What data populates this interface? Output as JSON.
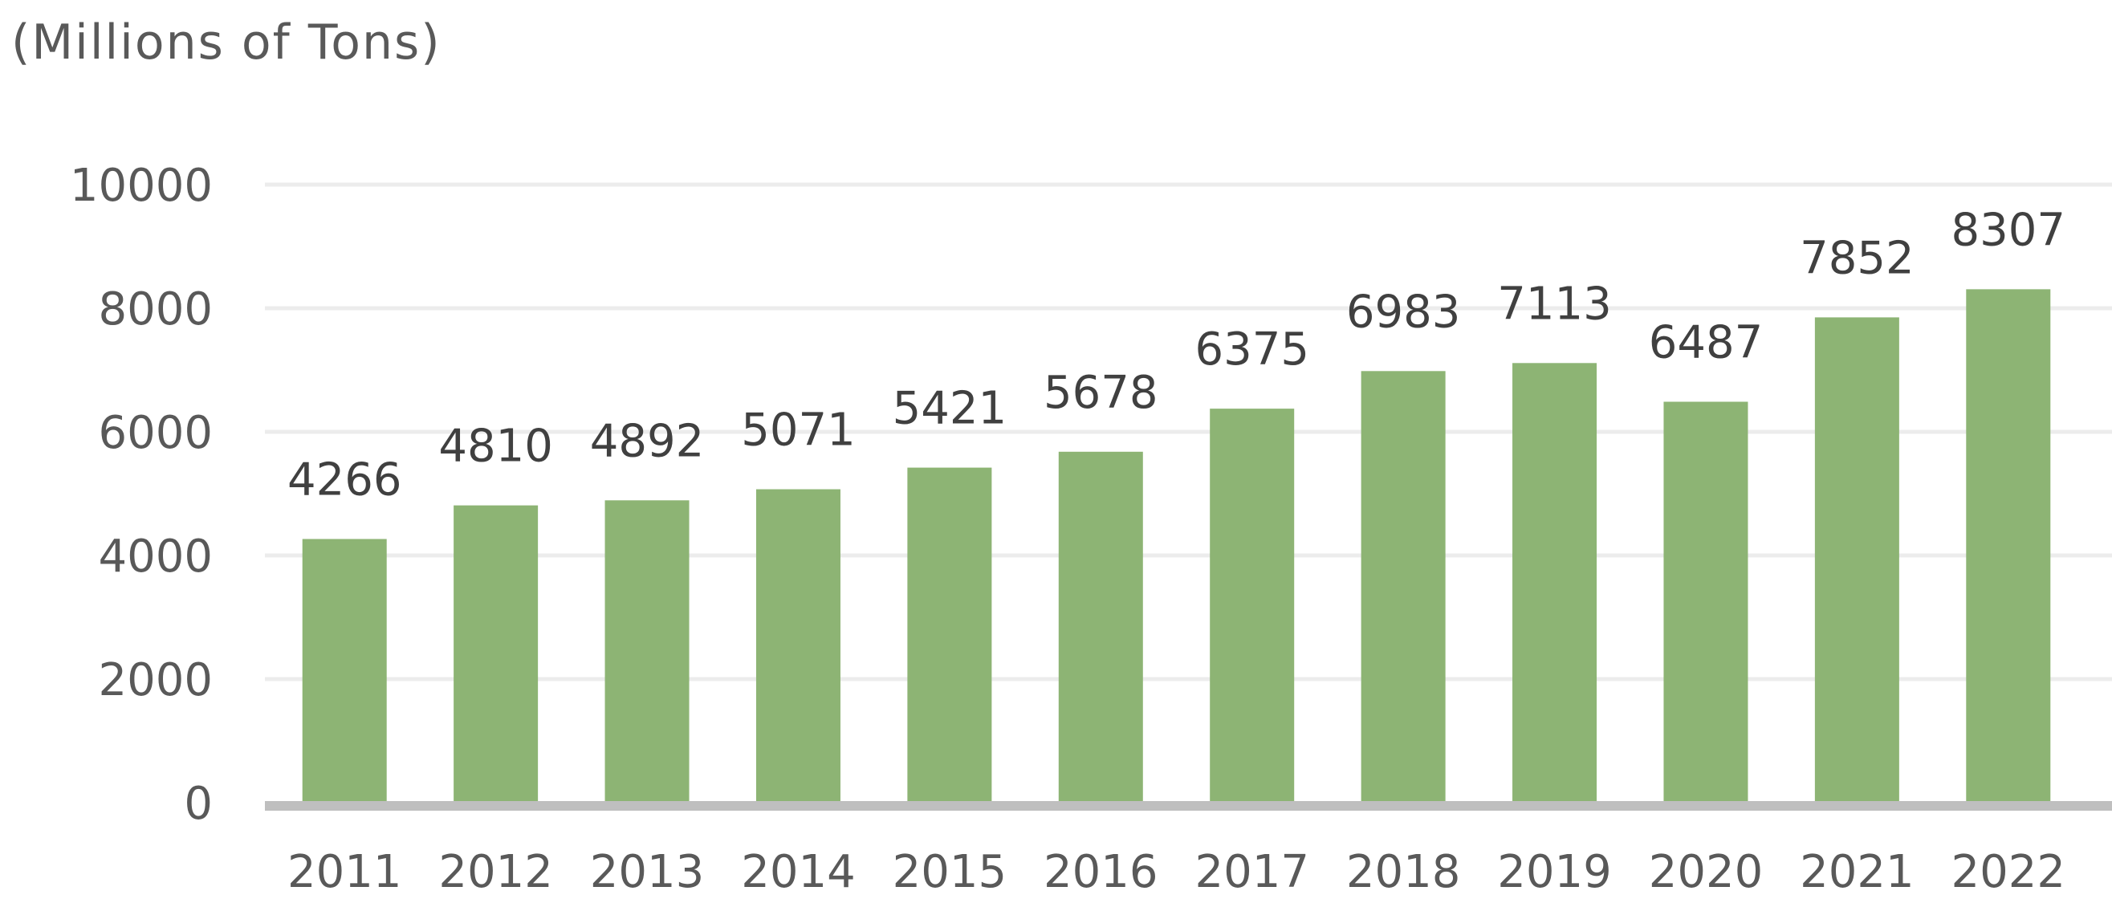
{
  "chart_data": {
    "type": "bar",
    "unit_label": "(Millions of Tons)",
    "categories": [
      "2011",
      "2012",
      "2013",
      "2014",
      "2015",
      "2016",
      "2017",
      "2018",
      "2019",
      "2020",
      "2021",
      "2022"
    ],
    "values": [
      4266,
      4810,
      4892,
      5071,
      5421,
      5678,
      6375,
      6983,
      7113,
      6487,
      7852,
      8307
    ],
    "ylim": [
      0,
      10000
    ],
    "yticks": [
      0,
      2000,
      4000,
      6000,
      8000,
      10000
    ],
    "grid": true,
    "legend": "none",
    "data_labels": true,
    "colors": {
      "bar": "#8db474",
      "gridline": "#ececec",
      "axis": "#bfbfbf"
    }
  }
}
